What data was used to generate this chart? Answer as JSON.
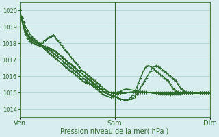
{
  "title": "",
  "xlabel": "Pression niveau de la mer( hPa )",
  "ylabel": "",
  "bg_color": "#d8eeee",
  "grid_color": "#aacccc",
  "line_color": "#2d6b2d",
  "marker": "+",
  "markersize": 3.5,
  "linewidth": 0.9,
  "ylim": [
    1013.5,
    1020.5
  ],
  "xtick_labels": [
    "Ven",
    "Sam",
    "Dim"
  ],
  "xtick_positions": [
    0,
    48,
    96
  ],
  "ytick_positions": [
    1014,
    1015,
    1016,
    1017,
    1018,
    1019,
    1020
  ],
  "total_points": 97,
  "series": [
    [
      1020.0,
      1019.6,
      1019.3,
      1019.0,
      1018.8,
      1018.6,
      1018.45,
      1018.3,
      1018.2,
      1018.1,
      1018.0,
      1017.9,
      1017.8,
      1017.65,
      1017.5,
      1017.4,
      1017.3,
      1017.2,
      1017.1,
      1017.0,
      1016.9,
      1016.8,
      1016.7,
      1016.6,
      1016.5,
      1016.4,
      1016.3,
      1016.2,
      1016.1,
      1016.0,
      1015.9,
      1015.8,
      1015.7,
      1015.65,
      1015.6,
      1015.55,
      1015.5,
      1015.45,
      1015.4,
      1015.35,
      1015.3,
      1015.25,
      1015.2,
      1015.15,
      1015.1,
      1015.05,
      1015.0,
      1014.98,
      1014.96,
      1014.95,
      1014.95,
      1014.96,
      1014.97,
      1014.98,
      1015.0,
      1015.02,
      1015.04,
      1015.05,
      1015.05,
      1015.05,
      1015.05,
      1015.04,
      1015.03,
      1015.02,
      1015.01,
      1015.0,
      1014.99,
      1014.98,
      1014.97,
      1014.96,
      1014.95,
      1014.94,
      1014.93,
      1014.92,
      1014.91,
      1014.9,
      1014.89,
      1014.9,
      1014.91,
      1014.92,
      1014.93,
      1014.94,
      1014.95,
      1014.95,
      1014.95,
      1014.95,
      1014.95,
      1014.95,
      1014.95,
      1014.95,
      1014.95,
      1014.95,
      1014.95,
      1014.95,
      1014.95,
      1014.95,
      1014.95
    ],
    [
      1020.0,
      1019.5,
      1019.1,
      1018.8,
      1018.6,
      1018.4,
      1018.3,
      1018.2,
      1018.1,
      1018.05,
      1018.0,
      1018.0,
      1018.1,
      1018.2,
      1018.3,
      1018.4,
      1018.45,
      1018.5,
      1018.35,
      1018.2,
      1018.05,
      1017.9,
      1017.75,
      1017.6,
      1017.45,
      1017.3,
      1017.15,
      1017.0,
      1016.85,
      1016.7,
      1016.55,
      1016.4,
      1016.3,
      1016.2,
      1016.1,
      1016.0,
      1015.9,
      1015.8,
      1015.7,
      1015.6,
      1015.5,
      1015.4,
      1015.3,
      1015.2,
      1015.1,
      1015.0,
      1015.0,
      1015.0,
      1015.0,
      1015.0,
      1015.0,
      1015.0,
      1015.0,
      1015.0,
      1015.0,
      1015.0,
      1015.0,
      1015.0,
      1015.0,
      1015.0,
      1015.0,
      1015.0,
      1015.0,
      1015.0,
      1015.0,
      1015.0,
      1015.0,
      1015.0,
      1015.0,
      1015.0,
      1015.0,
      1015.0,
      1015.0,
      1015.0,
      1015.0,
      1015.0,
      1015.0,
      1015.0,
      1015.0,
      1015.0,
      1015.0,
      1015.0,
      1015.0,
      1015.0,
      1015.0,
      1015.0,
      1015.0,
      1015.0,
      1015.0,
      1015.0,
      1015.0,
      1015.0,
      1015.0,
      1015.0,
      1015.0,
      1015.0,
      1015.0
    ],
    [
      1020.0,
      1019.4,
      1018.9,
      1018.55,
      1018.3,
      1018.15,
      1018.05,
      1018.0,
      1017.95,
      1017.9,
      1017.85,
      1017.8,
      1017.75,
      1017.7,
      1017.65,
      1017.6,
      1017.5,
      1017.4,
      1017.3,
      1017.2,
      1017.1,
      1017.0,
      1016.9,
      1016.8,
      1016.7,
      1016.6,
      1016.5,
      1016.4,
      1016.3,
      1016.2,
      1016.1,
      1016.0,
      1015.9,
      1015.8,
      1015.7,
      1015.6,
      1015.5,
      1015.4,
      1015.3,
      1015.2,
      1015.1,
      1015.0,
      1014.9,
      1014.85,
      1014.8,
      1014.75,
      1014.7,
      1014.75,
      1014.8,
      1014.9,
      1015.0,
      1015.1,
      1015.15,
      1015.2,
      1015.22,
      1015.2,
      1015.18,
      1015.15,
      1015.12,
      1015.1,
      1015.08,
      1015.06,
      1015.05,
      1015.04,
      1015.03,
      1015.02,
      1015.01,
      1015.0,
      1014.99,
      1014.98,
      1014.97,
      1014.96,
      1014.95,
      1014.95,
      1014.95,
      1014.95,
      1014.95,
      1014.95,
      1014.95,
      1014.95,
      1014.95,
      1014.95,
      1014.95,
      1014.95,
      1014.95,
      1014.95,
      1014.95,
      1014.95,
      1014.95,
      1014.95,
      1014.95,
      1014.95,
      1014.95,
      1014.95,
      1014.95,
      1014.95,
      1014.95
    ],
    [
      1020.0,
      1019.5,
      1019.0,
      1018.7,
      1018.5,
      1018.35,
      1018.2,
      1018.1,
      1018.05,
      1018.0,
      1017.95,
      1017.9,
      1017.85,
      1017.8,
      1017.75,
      1017.7,
      1017.65,
      1017.6,
      1017.5,
      1017.4,
      1017.3,
      1017.2,
      1017.1,
      1017.0,
      1016.9,
      1016.8,
      1016.7,
      1016.6,
      1016.5,
      1016.4,
      1016.3,
      1016.2,
      1016.1,
      1016.0,
      1015.9,
      1015.8,
      1015.7,
      1015.6,
      1015.5,
      1015.4,
      1015.3,
      1015.2,
      1015.1,
      1015.0,
      1014.95,
      1014.9,
      1014.85,
      1014.8,
      1014.75,
      1014.7,
      1014.65,
      1014.6,
      1014.58,
      1014.56,
      1014.55,
      1014.57,
      1014.6,
      1014.65,
      1014.75,
      1014.9,
      1015.1,
      1015.3,
      1015.5,
      1015.7,
      1015.9,
      1016.1,
      1016.3,
      1016.5,
      1016.6,
      1016.65,
      1016.6,
      1016.5,
      1016.4,
      1016.3,
      1016.2,
      1016.1,
      1016.0,
      1015.9,
      1015.8,
      1015.7,
      1015.5,
      1015.3,
      1015.2,
      1015.1,
      1015.05,
      1015.0,
      1015.0,
      1015.0,
      1015.0,
      1015.0,
      1015.0,
      1015.0,
      1015.0,
      1015.0,
      1015.0,
      1015.0,
      1015.0
    ],
    [
      1020.0,
      1019.5,
      1019.0,
      1018.7,
      1018.5,
      1018.3,
      1018.2,
      1018.1,
      1018.05,
      1018.0,
      1017.95,
      1017.9,
      1017.85,
      1017.8,
      1017.75,
      1017.7,
      1017.65,
      1017.6,
      1017.5,
      1017.4,
      1017.3,
      1017.2,
      1017.1,
      1017.0,
      1016.9,
      1016.8,
      1016.7,
      1016.6,
      1016.5,
      1016.4,
      1016.3,
      1016.2,
      1016.1,
      1016.0,
      1015.9,
      1015.8,
      1015.7,
      1015.6,
      1015.5,
      1015.4,
      1015.3,
      1015.2,
      1015.1,
      1015.0,
      1014.95,
      1014.9,
      1014.85,
      1014.8,
      1014.75,
      1014.7,
      1014.65,
      1014.6,
      1014.58,
      1014.56,
      1014.55,
      1014.6,
      1014.7,
      1014.85,
      1015.05,
      1015.3,
      1015.6,
      1015.9,
      1016.2,
      1016.45,
      1016.6,
      1016.65,
      1016.6,
      1016.5,
      1016.4,
      1016.3,
      1016.2,
      1016.1,
      1016.0,
      1015.9,
      1015.8,
      1015.7,
      1015.5,
      1015.3,
      1015.2,
      1015.1,
      1015.05,
      1015.0,
      1015.0,
      1015.0,
      1015.0,
      1015.0,
      1015.0,
      1015.0,
      1015.0,
      1015.0,
      1015.0,
      1015.0,
      1015.0,
      1015.0,
      1015.0,
      1015.0,
      1015.0
    ]
  ]
}
